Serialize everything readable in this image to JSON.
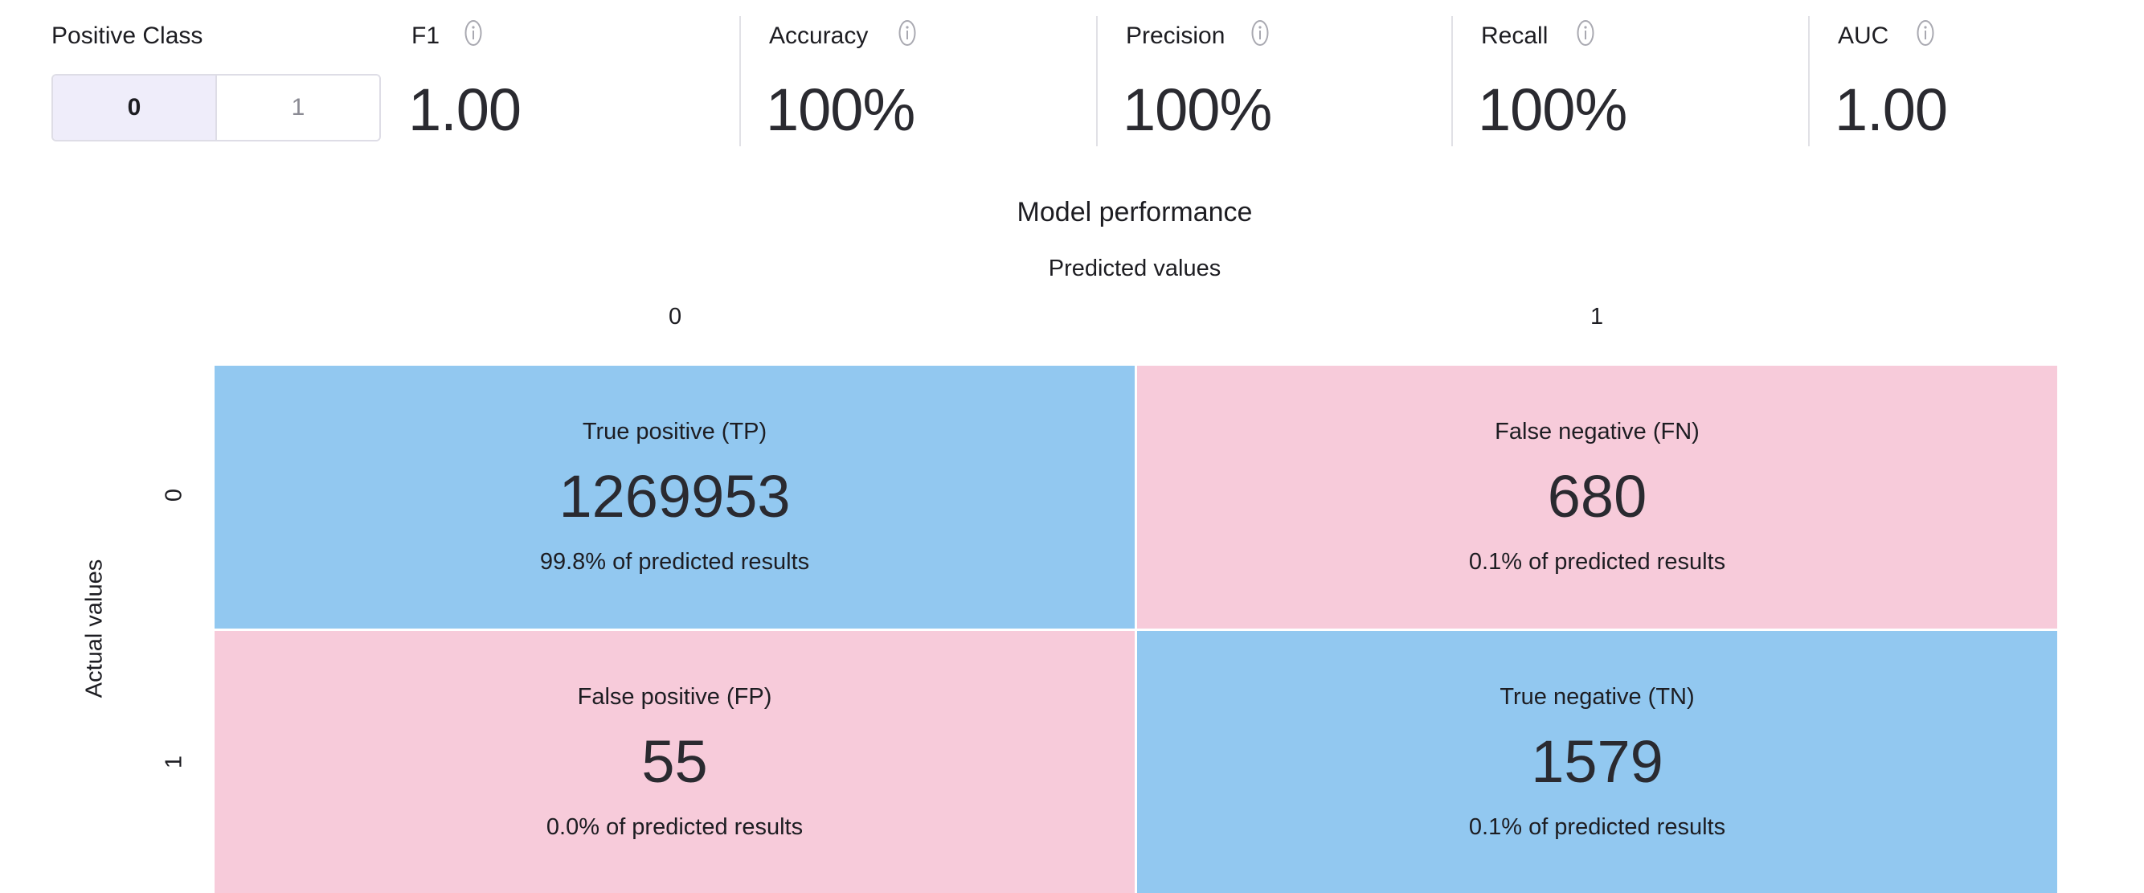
{
  "positive_class": {
    "label": "Positive Class",
    "options": [
      "0",
      "1"
    ],
    "selected": "0"
  },
  "metrics": [
    {
      "label": "F1",
      "value": "1.00",
      "icon": "info-icon"
    },
    {
      "label": "Accuracy",
      "value": "100%",
      "icon": "info-icon"
    },
    {
      "label": "Precision",
      "value": "100%",
      "icon": "info-icon"
    },
    {
      "label": "Recall",
      "value": "100%",
      "icon": "info-icon"
    },
    {
      "label": "AUC",
      "value": "1.00",
      "icon": "info-icon"
    }
  ],
  "colors": {
    "true_cell": "#92c8f0",
    "false_cell": "#f7cbda",
    "active_segment": "#efedfa"
  },
  "chart_data": {
    "type": "heatmap",
    "title": "Model performance",
    "xlabel": "Predicted values",
    "ylabel": "Actual values",
    "columns": [
      "0",
      "1"
    ],
    "rows": [
      "0",
      "1"
    ],
    "cells": [
      [
        {
          "label": "True positive (TP)",
          "value": "1269953",
          "pct": "99.8% of predicted results"
        },
        {
          "label": "False negative (FN)",
          "value": "680",
          "pct": "0.1% of predicted results"
        }
      ],
      [
        {
          "label": "False positive (FP)",
          "value": "55",
          "pct": "0.0% of predicted results"
        },
        {
          "label": "True negative (TN)",
          "value": "1579",
          "pct": "0.1% of predicted results"
        }
      ]
    ]
  }
}
